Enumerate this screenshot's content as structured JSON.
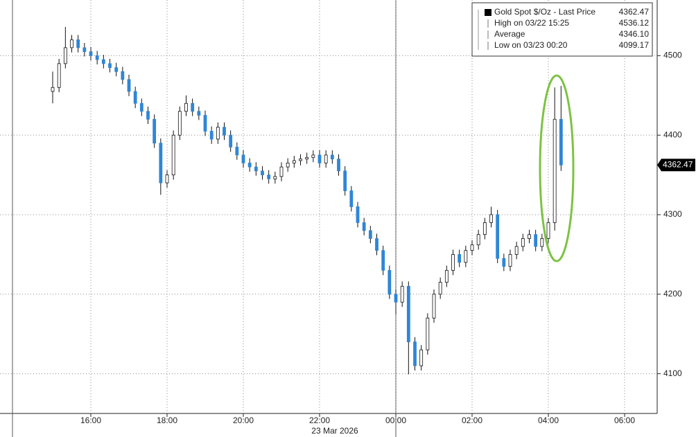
{
  "chart_data": {
    "type": "candlestick",
    "legend": [
      {
        "name": "Gold Spot $/Oz - Last Price",
        "value": "4362.47"
      },
      {
        "name": "High on 03/22 15:25",
        "value": "4536.12"
      },
      {
        "name": "Average",
        "value": "4346.10"
      },
      {
        "name": "Low on 03/23 00:20",
        "value": "4099.17"
      }
    ],
    "date_label": "23 Mar 2026",
    "x": [
      "15:00",
      "15:10",
      "15:20",
      "15:30",
      "15:40",
      "15:50",
      "16:00",
      "16:10",
      "16:20",
      "16:30",
      "16:40",
      "16:50",
      "17:00",
      "17:10",
      "17:20",
      "17:30",
      "17:40",
      "17:50",
      "18:00",
      "18:10",
      "18:20",
      "18:30",
      "18:40",
      "18:50",
      "19:00",
      "19:10",
      "19:20",
      "19:30",
      "19:40",
      "19:50",
      "20:00",
      "20:10",
      "20:20",
      "20:30",
      "20:40",
      "20:50",
      "21:00",
      "21:10",
      "21:20",
      "21:30",
      "21:40",
      "21:50",
      "22:00",
      "22:10",
      "22:20",
      "22:30",
      "22:40",
      "22:50",
      "23:00",
      "23:10",
      "23:20",
      "23:30",
      "23:40",
      "23:50",
      "00:00",
      "00:10",
      "00:20",
      "00:30",
      "00:40",
      "00:50",
      "01:00",
      "01:10",
      "01:20",
      "01:30",
      "01:40",
      "01:50",
      "02:00",
      "02:10",
      "02:20",
      "02:30",
      "02:40",
      "02:50",
      "03:00",
      "03:10",
      "03:20",
      "03:30",
      "03:40",
      "03:50",
      "04:00",
      "04:10",
      "04:20"
    ],
    "open": [
      4455,
      4460,
      4490,
      4510,
      4520,
      4510,
      4505,
      4500,
      4495,
      4490,
      4485,
      4480,
      4470,
      4455,
      4440,
      4430,
      4420,
      4390,
      4340,
      4350,
      4400,
      4430,
      4440,
      4430,
      4425,
      4405,
      4395,
      4410,
      4400,
      4385,
      4375,
      4365,
      4360,
      4355,
      4350,
      4345,
      4348,
      4360,
      4365,
      4368,
      4370,
      4372,
      4375,
      4365,
      4375,
      4370,
      4355,
      4330,
      4310,
      4290,
      4280,
      4270,
      4255,
      4230,
      4200,
      4190,
      4210,
      4140,
      4110,
      4130,
      4170,
      4200,
      4215,
      4230,
      4250,
      4240,
      4255,
      4262,
      4275,
      4290,
      4300,
      4245,
      4235,
      4250,
      4260,
      4270,
      4275,
      4260,
      4270,
      4290,
      4420
    ],
    "high": [
      4480,
      4496,
      4536.12,
      4526,
      4526,
      4516,
      4511,
      4506,
      4501,
      4496,
      4491,
      4486,
      4476,
      4461,
      4446,
      4436,
      4426,
      4396,
      4356,
      4406,
      4436,
      4450,
      4446,
      4436,
      4431,
      4411,
      4416,
      4416,
      4406,
      4391,
      4381,
      4371,
      4366,
      4361,
      4356,
      4354,
      4366,
      4371,
      4374,
      4376,
      4378,
      4381,
      4381,
      4381,
      4381,
      4376,
      4361,
      4336,
      4316,
      4296,
      4286,
      4276,
      4261,
      4236,
      4206,
      4216,
      4216,
      4146,
      4136,
      4176,
      4206,
      4221,
      4236,
      4256,
      4256,
      4261,
      4268,
      4281,
      4296,
      4310,
      4306,
      4251,
      4256,
      4266,
      4276,
      4281,
      4281,
      4276,
      4296,
      4460,
      4462
    ],
    "low": [
      4440,
      4454,
      4484,
      4504,
      4504,
      4499,
      4494,
      4489,
      4484,
      4479,
      4474,
      4464,
      4449,
      4434,
      4424,
      4414,
      4384,
      4325,
      4334,
      4344,
      4394,
      4424,
      4424,
      4419,
      4399,
      4389,
      4389,
      4394,
      4379,
      4369,
      4359,
      4354,
      4349,
      4344,
      4339,
      4339,
      4342,
      4354,
      4359,
      4362,
      4364,
      4366,
      4359,
      4359,
      4364,
      4349,
      4324,
      4304,
      4284,
      4274,
      4264,
      4249,
      4224,
      4194,
      4175,
      4184,
      4099.17,
      4104,
      4104,
      4124,
      4164,
      4194,
      4209,
      4224,
      4234,
      4234,
      4249,
      4256,
      4269,
      4284,
      4239,
      4229,
      4229,
      4244,
      4254,
      4264,
      4254,
      4254,
      4264,
      4280,
      4355
    ],
    "close": [
      4460,
      4490,
      4510,
      4520,
      4510,
      4505,
      4500,
      4495,
      4490,
      4485,
      4480,
      4470,
      4455,
      4440,
      4430,
      4420,
      4390,
      4340,
      4350,
      4400,
      4430,
      4440,
      4430,
      4425,
      4405,
      4395,
      4410,
      4400,
      4385,
      4375,
      4365,
      4360,
      4355,
      4350,
      4345,
      4348,
      4360,
      4365,
      4368,
      4370,
      4372,
      4375,
      4365,
      4375,
      4370,
      4355,
      4330,
      4310,
      4290,
      4280,
      4270,
      4255,
      4230,
      4200,
      4190,
      4210,
      4140,
      4110,
      4130,
      4170,
      4200,
      4215,
      4230,
      4250,
      4240,
      4255,
      4262,
      4275,
      4290,
      4300,
      4245,
      4235,
      4250,
      4260,
      4270,
      4275,
      4260,
      4270,
      4290,
      4420,
      4362.47
    ],
    "up_color": "#ffffff",
    "down_color": "#2f86d6",
    "xticks": [
      "16:00",
      "18:00",
      "20:00",
      "22:00",
      "00:00",
      "02:00",
      "04:00",
      "06:00"
    ],
    "ylim": [
      4050,
      4570
    ],
    "yticks": [
      4100,
      4200,
      4300,
      4400,
      4500
    ],
    "grid": true
  }
}
